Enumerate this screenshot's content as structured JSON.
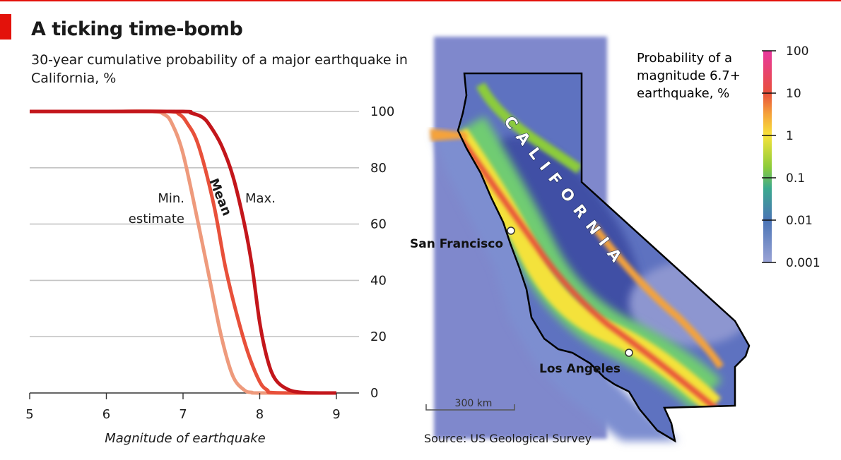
{
  "header": {
    "title": "A ticking time-bomb",
    "subtitle": "30-year cumulative probability of a major earthquake in California, %"
  },
  "source": "Source: US Geological Survey",
  "colors": {
    "accent": "#e3120b",
    "min": "#ee9a7c",
    "mean": "#e8503a",
    "max": "#c3161b"
  },
  "chart_data": [
    {
      "type": "line",
      "title": "",
      "xlabel": "Magnitude of earthquake",
      "ylabel": "",
      "xlim": [
        5,
        9
      ],
      "ylim": [
        0,
        100
      ],
      "x_ticks": [
        "5",
        "6",
        "7",
        "8",
        "9"
      ],
      "y_ticks": [
        "100",
        "80",
        "60",
        "40",
        "20",
        "0"
      ],
      "grid": true,
      "series": [
        {
          "name": "Min. estimate",
          "label_lines": [
            "Min.",
            "estimate"
          ],
          "x": [
            5,
            6,
            6.6,
            6.75,
            6.85,
            7.0,
            7.2,
            7.35,
            7.5,
            7.65,
            7.8,
            7.9,
            8.0,
            9.0
          ],
          "values": [
            100,
            100,
            100,
            99,
            96,
            85,
            60,
            40,
            20,
            6,
            1,
            0.2,
            0,
            0
          ]
        },
        {
          "name": "Mean",
          "label_lines": [
            "Mean"
          ],
          "x": [
            5,
            6,
            6.8,
            6.95,
            7.05,
            7.2,
            7.4,
            7.55,
            7.7,
            7.85,
            8.0,
            8.1,
            8.2,
            9.0
          ],
          "values": [
            100,
            100,
            100,
            99,
            96,
            88,
            67,
            45,
            28,
            14,
            4,
            1,
            0.1,
            0
          ]
        },
        {
          "name": "Max.",
          "label_lines": [
            "Max."
          ],
          "x": [
            5,
            6,
            7.0,
            7.1,
            7.25,
            7.35,
            7.5,
            7.65,
            7.8,
            7.9,
            8.0,
            8.1,
            8.2,
            8.35,
            8.55,
            9.0
          ],
          "values": [
            100,
            100,
            100,
            99.5,
            98,
            95,
            88,
            77,
            60,
            45,
            25,
            12,
            5,
            1.5,
            0.2,
            0
          ]
        }
      ]
    },
    {
      "type": "heatmap",
      "title": "Probability of a magnitude 6.7+ earthquake, %",
      "colorbar_ticks": [
        "100",
        "10",
        "1",
        "0.1",
        "0.01",
        "0.001"
      ],
      "colorscale": [
        "#e8389f",
        "#e8503a",
        "#f5a33a",
        "#f7e33a",
        "#8ccc3a",
        "#3ba98e",
        "#4a74b5",
        "#9aa3d6"
      ],
      "state_label": "CALIFORNIA",
      "cities": [
        {
          "name": "San Francisco"
        },
        {
          "name": "Los Angeles"
        }
      ],
      "scale_bar": "300 km"
    }
  ]
}
